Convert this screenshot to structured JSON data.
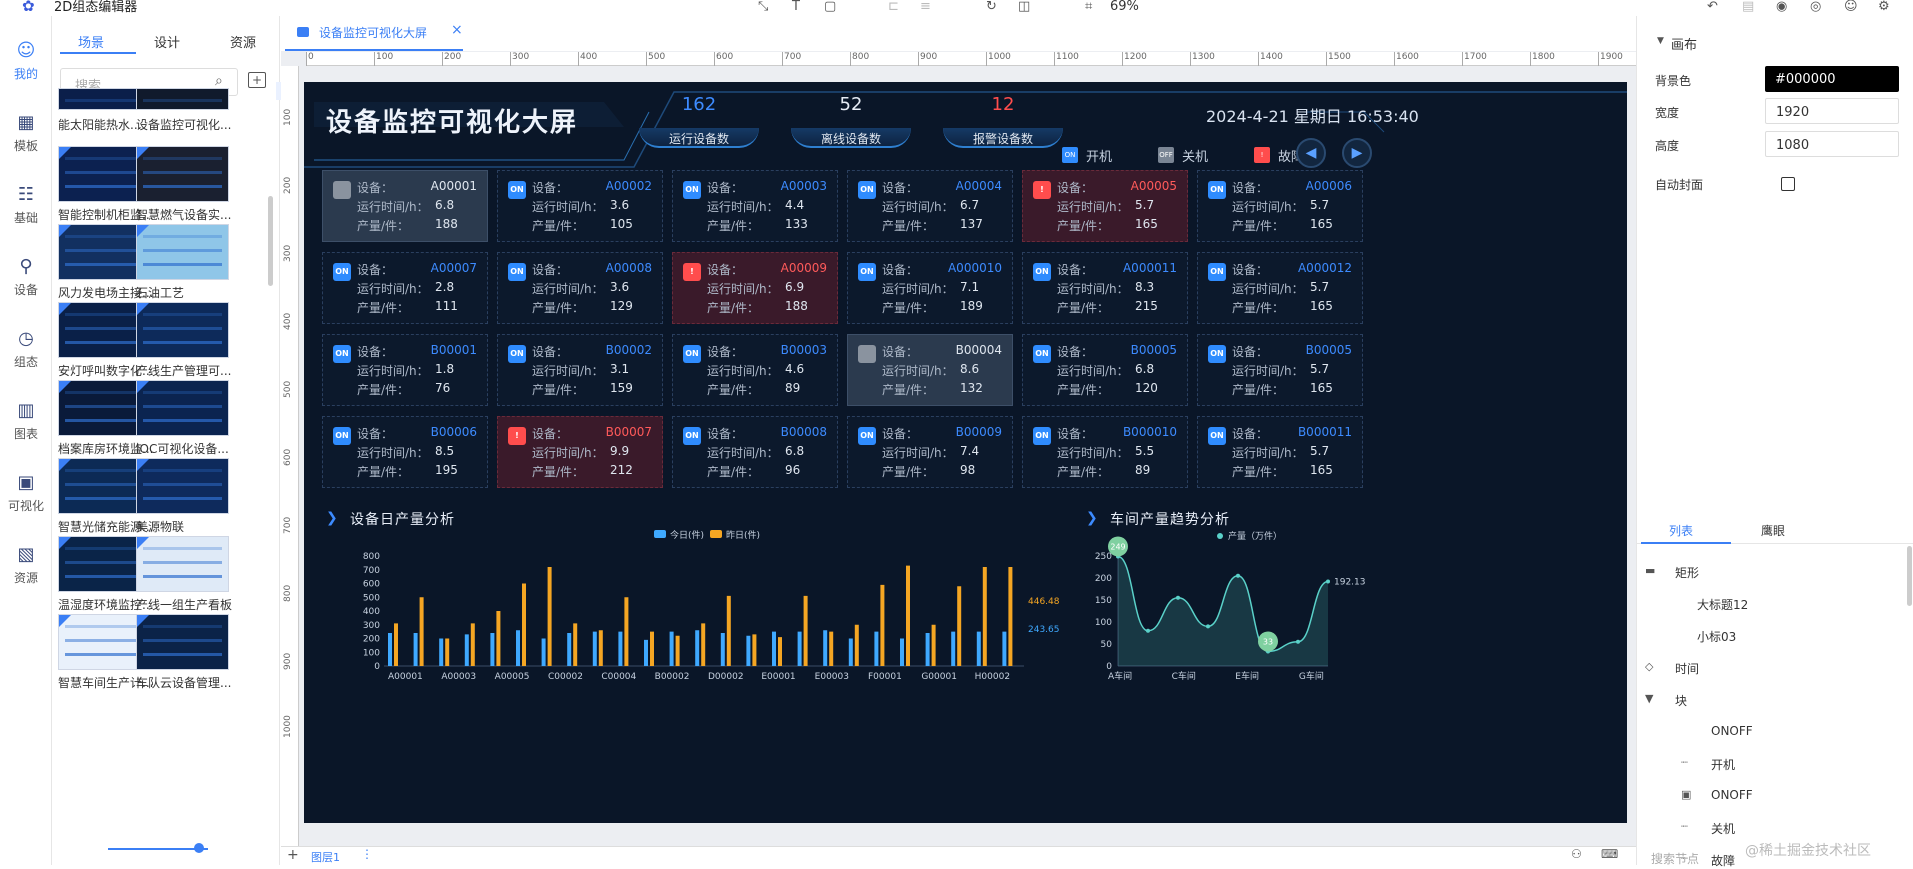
{
  "app": {
    "title": "2D组态编辑器",
    "zoom": "69%"
  },
  "leftnav": [
    {
      "label": "我的",
      "icon": "user-icon"
    },
    {
      "label": "模板",
      "icon": "template-icon"
    },
    {
      "label": "基础",
      "icon": "basic-icon"
    },
    {
      "label": "设备",
      "icon": "device-icon"
    },
    {
      "label": "组态",
      "icon": "config-icon"
    },
    {
      "label": "图表",
      "icon": "chart-icon"
    },
    {
      "label": "可视化",
      "icon": "visual-icon"
    },
    {
      "label": "资源",
      "icon": "resource-icon"
    }
  ],
  "scene_panel": {
    "tabs": [
      "场景",
      "设计",
      "资源"
    ],
    "search_placeholder": "搜索",
    "items": [
      "能太阳能热水...",
      "设备监控可视化...",
      "智能控制机柜监...",
      "智慧燃气设备实...",
      "风力发电场主接...",
      "石油工艺",
      "安灯呼叫数字化...",
      "产线生产管理可...",
      "档案库房环境监...",
      "IOC可视化设备...",
      "智慧光储充能源...",
      "美源物联",
      "温湿度环境监控...",
      "产线一组生产看板",
      "智慧车间生产计...",
      "车队云设备管理..."
    ]
  },
  "editor": {
    "tab_label": "设备监控可视化大屏",
    "ruler_x": [
      "0",
      "100",
      "200",
      "300",
      "400",
      "500",
      "600",
      "700",
      "800",
      "900",
      "1000",
      "1100",
      "1200",
      "1300",
      "1400",
      "1500",
      "1600",
      "1700",
      "1800",
      "1900"
    ],
    "ruler_y": [
      "100",
      "200",
      "300",
      "400",
      "500",
      "600",
      "700",
      "800",
      "900",
      "1000"
    ],
    "layer_label": "图层1"
  },
  "dashboard": {
    "title": "设备监控可视化大屏",
    "datetime": "2024-4-21 星期日 16:53:40",
    "stats": [
      {
        "value": "162",
        "label": "运行设备数",
        "color": "#3d8bff"
      },
      {
        "value": "52",
        "label": "离线设备数",
        "color": "#e6ecf5"
      },
      {
        "value": "12",
        "label": "报警设备数",
        "color": "#ff4d4d"
      }
    ],
    "legend": [
      {
        "badge": "ON",
        "label": "开机",
        "color": "#2f8cff"
      },
      {
        "badge": "OFF",
        "label": "关机",
        "color": "#7a8594"
      },
      {
        "badge": "!",
        "label": "故障",
        "color": "#ff4d4d"
      }
    ],
    "field_labels": {
      "device": "设备：",
      "runtime": "运行时间/h：",
      "output": "产量/件："
    },
    "devices": [
      {
        "id": "A00001",
        "runtime": "6.8",
        "output": "188",
        "status": "off"
      },
      {
        "id": "A00002",
        "runtime": "3.6",
        "output": "105",
        "status": "on"
      },
      {
        "id": "A00003",
        "runtime": "4.4",
        "output": "133",
        "status": "on"
      },
      {
        "id": "A00004",
        "runtime": "6.7",
        "output": "137",
        "status": "on"
      },
      {
        "id": "A00005",
        "runtime": "5.7",
        "output": "165",
        "status": "fault"
      },
      {
        "id": "A00006",
        "runtime": "5.7",
        "output": "165",
        "status": "on"
      },
      {
        "id": "A00007",
        "runtime": "2.8",
        "output": "111",
        "status": "on"
      },
      {
        "id": "A00008",
        "runtime": "3.6",
        "output": "129",
        "status": "on"
      },
      {
        "id": "A00009",
        "runtime": "6.9",
        "output": "188",
        "status": "fault"
      },
      {
        "id": "A000010",
        "runtime": "7.1",
        "output": "189",
        "status": "on"
      },
      {
        "id": "A000011",
        "runtime": "8.3",
        "output": "215",
        "status": "on"
      },
      {
        "id": "A000012",
        "runtime": "5.7",
        "output": "165",
        "status": "on"
      },
      {
        "id": "B00001",
        "runtime": "1.8",
        "output": "76",
        "status": "on"
      },
      {
        "id": "B00002",
        "runtime": "3.1",
        "output": "159",
        "status": "on"
      },
      {
        "id": "B00003",
        "runtime": "4.6",
        "output": "89",
        "status": "on"
      },
      {
        "id": "B00004",
        "runtime": "8.6",
        "output": "132",
        "status": "off"
      },
      {
        "id": "B00005",
        "runtime": "6.8",
        "output": "120",
        "status": "on"
      },
      {
        "id": "B00005",
        "runtime": "5.7",
        "output": "165",
        "status": "on"
      },
      {
        "id": "B00006",
        "runtime": "8.5",
        "output": "195",
        "status": "on"
      },
      {
        "id": "B00007",
        "runtime": "9.9",
        "output": "212",
        "status": "fault"
      },
      {
        "id": "B00008",
        "runtime": "6.8",
        "output": "96",
        "status": "on"
      },
      {
        "id": "B00009",
        "runtime": "7.4",
        "output": "98",
        "status": "on"
      },
      {
        "id": "B000010",
        "runtime": "5.5",
        "output": "89",
        "status": "on"
      },
      {
        "id": "B000011",
        "runtime": "5.7",
        "output": "165",
        "status": "on"
      }
    ],
    "bar_title": "设备日产量分析",
    "line_title": "车间产量趋势分析"
  },
  "chart_data": [
    {
      "type": "bar",
      "title": "设备日产量分析",
      "legend": [
        "今日(件)",
        "昨日(件)"
      ],
      "legend_placement": "top-center",
      "ylim": [
        0,
        800
      ],
      "yticks": [
        "0",
        "100",
        "200",
        "300",
        "400",
        "500",
        "600",
        "700",
        "800"
      ],
      "xtick_labels": [
        "A00001",
        "A00003",
        "A00005",
        "C00002",
        "C00004",
        "B00002",
        "D00002",
        "E00001",
        "E00003",
        "F00001",
        "G00001",
        "H00002"
      ],
      "series": [
        {
          "name": "今日(件)",
          "color": "#3fa9ff",
          "values": [
            240,
            240,
            200,
            230,
            240,
            260,
            200,
            240,
            250,
            250,
            190,
            250,
            260,
            240,
            220,
            250,
            250,
            260,
            200,
            250,
            200,
            240,
            250,
            250,
            250
          ]
        },
        {
          "name": "昨日(件)",
          "color": "#f5a623",
          "values": [
            310,
            500,
            200,
            310,
            400,
            600,
            720,
            310,
            260,
            500,
            250,
            220,
            310,
            510,
            230,
            210,
            510,
            250,
            300,
            590,
            730,
            300,
            580,
            720,
            720
          ]
        }
      ],
      "markers": [
        "446.48",
        "243.65"
      ]
    },
    {
      "type": "area",
      "title": "车间产量趋势分析",
      "legend": [
        "产量（万件）"
      ],
      "ylim": [
        0,
        250
      ],
      "yticks": [
        "0",
        "50",
        "100",
        "150",
        "200",
        "250"
      ],
      "xtick_labels": [
        "A车间",
        "C车间",
        "E车间",
        "G车间"
      ],
      "series": [
        {
          "name": "产量（万件）",
          "values": [
            249,
            80,
            155,
            90,
            205,
            33,
            55,
            192
          ]
        }
      ],
      "callouts": [
        "249",
        "33"
      ],
      "end_label": "192.13"
    }
  ],
  "right_panel": {
    "section": "画布",
    "bg_label": "背景色",
    "bg_value": "#000000",
    "width_label": "宽度",
    "width_value": "1920",
    "height_label": "高度",
    "height_value": "1080",
    "cover_label": "自动封面",
    "tabs": [
      "列表",
      "鹰眼"
    ],
    "layers": [
      "矩形",
      "大标题12",
      "小标03",
      "时间",
      "块",
      "ONOFF",
      "开机",
      "ONOFF",
      "关机",
      "故障"
    ],
    "search_label": "搜索节点"
  },
  "watermark": "@稀土掘金技术社区"
}
